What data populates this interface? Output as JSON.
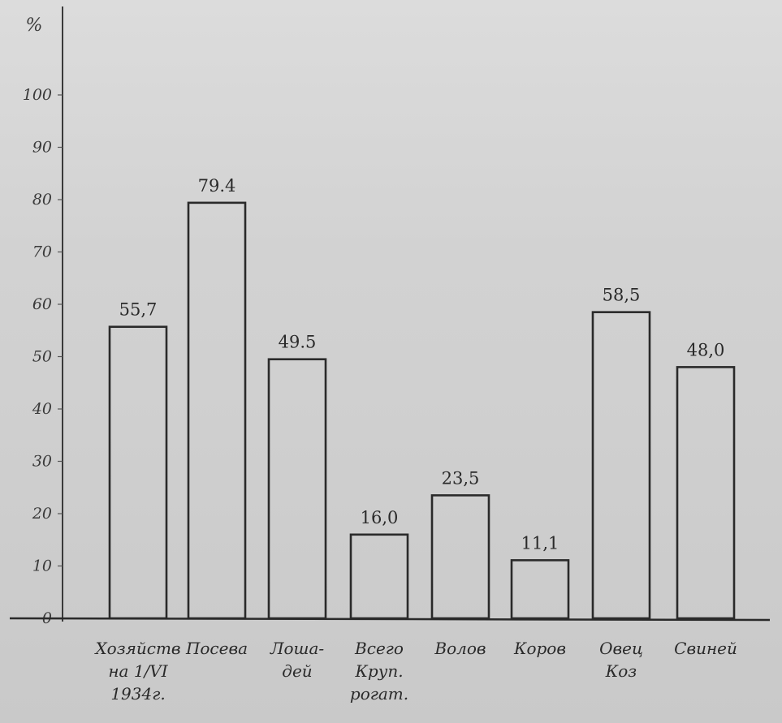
{
  "chart_data": {
    "type": "bar",
    "title": "",
    "xlabel": "",
    "ylabel": "%",
    "ylim": [
      0,
      110
    ],
    "yticks": [
      {
        "value": 0,
        "label": "0"
      },
      {
        "value": 10,
        "label": "10"
      },
      {
        "value": 20,
        "label": "20"
      },
      {
        "value": 30,
        "label": "30"
      },
      {
        "value": 40,
        "label": "40"
      },
      {
        "value": 50,
        "label": "50"
      },
      {
        "value": 60,
        "label": "60"
      },
      {
        "value": 70,
        "label": "70"
      },
      {
        "value": 80,
        "label": "80"
      },
      {
        "value": 90,
        "label": "90"
      },
      {
        "value": 100,
        "label": "100"
      }
    ],
    "categories": [
      [
        "Хозяйств",
        "на 1/VI",
        "1934г."
      ],
      [
        "Посева"
      ],
      [
        "Лоша-",
        "дей"
      ],
      [
        "Всего",
        "Круп.",
        "рогат."
      ],
      [
        "Волов"
      ],
      [
        "Коров"
      ],
      [
        "Овец",
        "Коз"
      ],
      [
        "Свиней"
      ]
    ],
    "values": [
      55.7,
      79.4,
      49.5,
      16.0,
      23.5,
      11.1,
      58.5,
      48.0
    ],
    "value_labels": [
      "55,7",
      "79.4",
      "49.5",
      "16,0",
      "23,5",
      "11,1",
      "58,5",
      "48,0"
    ],
    "grid": false,
    "legend": "none"
  }
}
